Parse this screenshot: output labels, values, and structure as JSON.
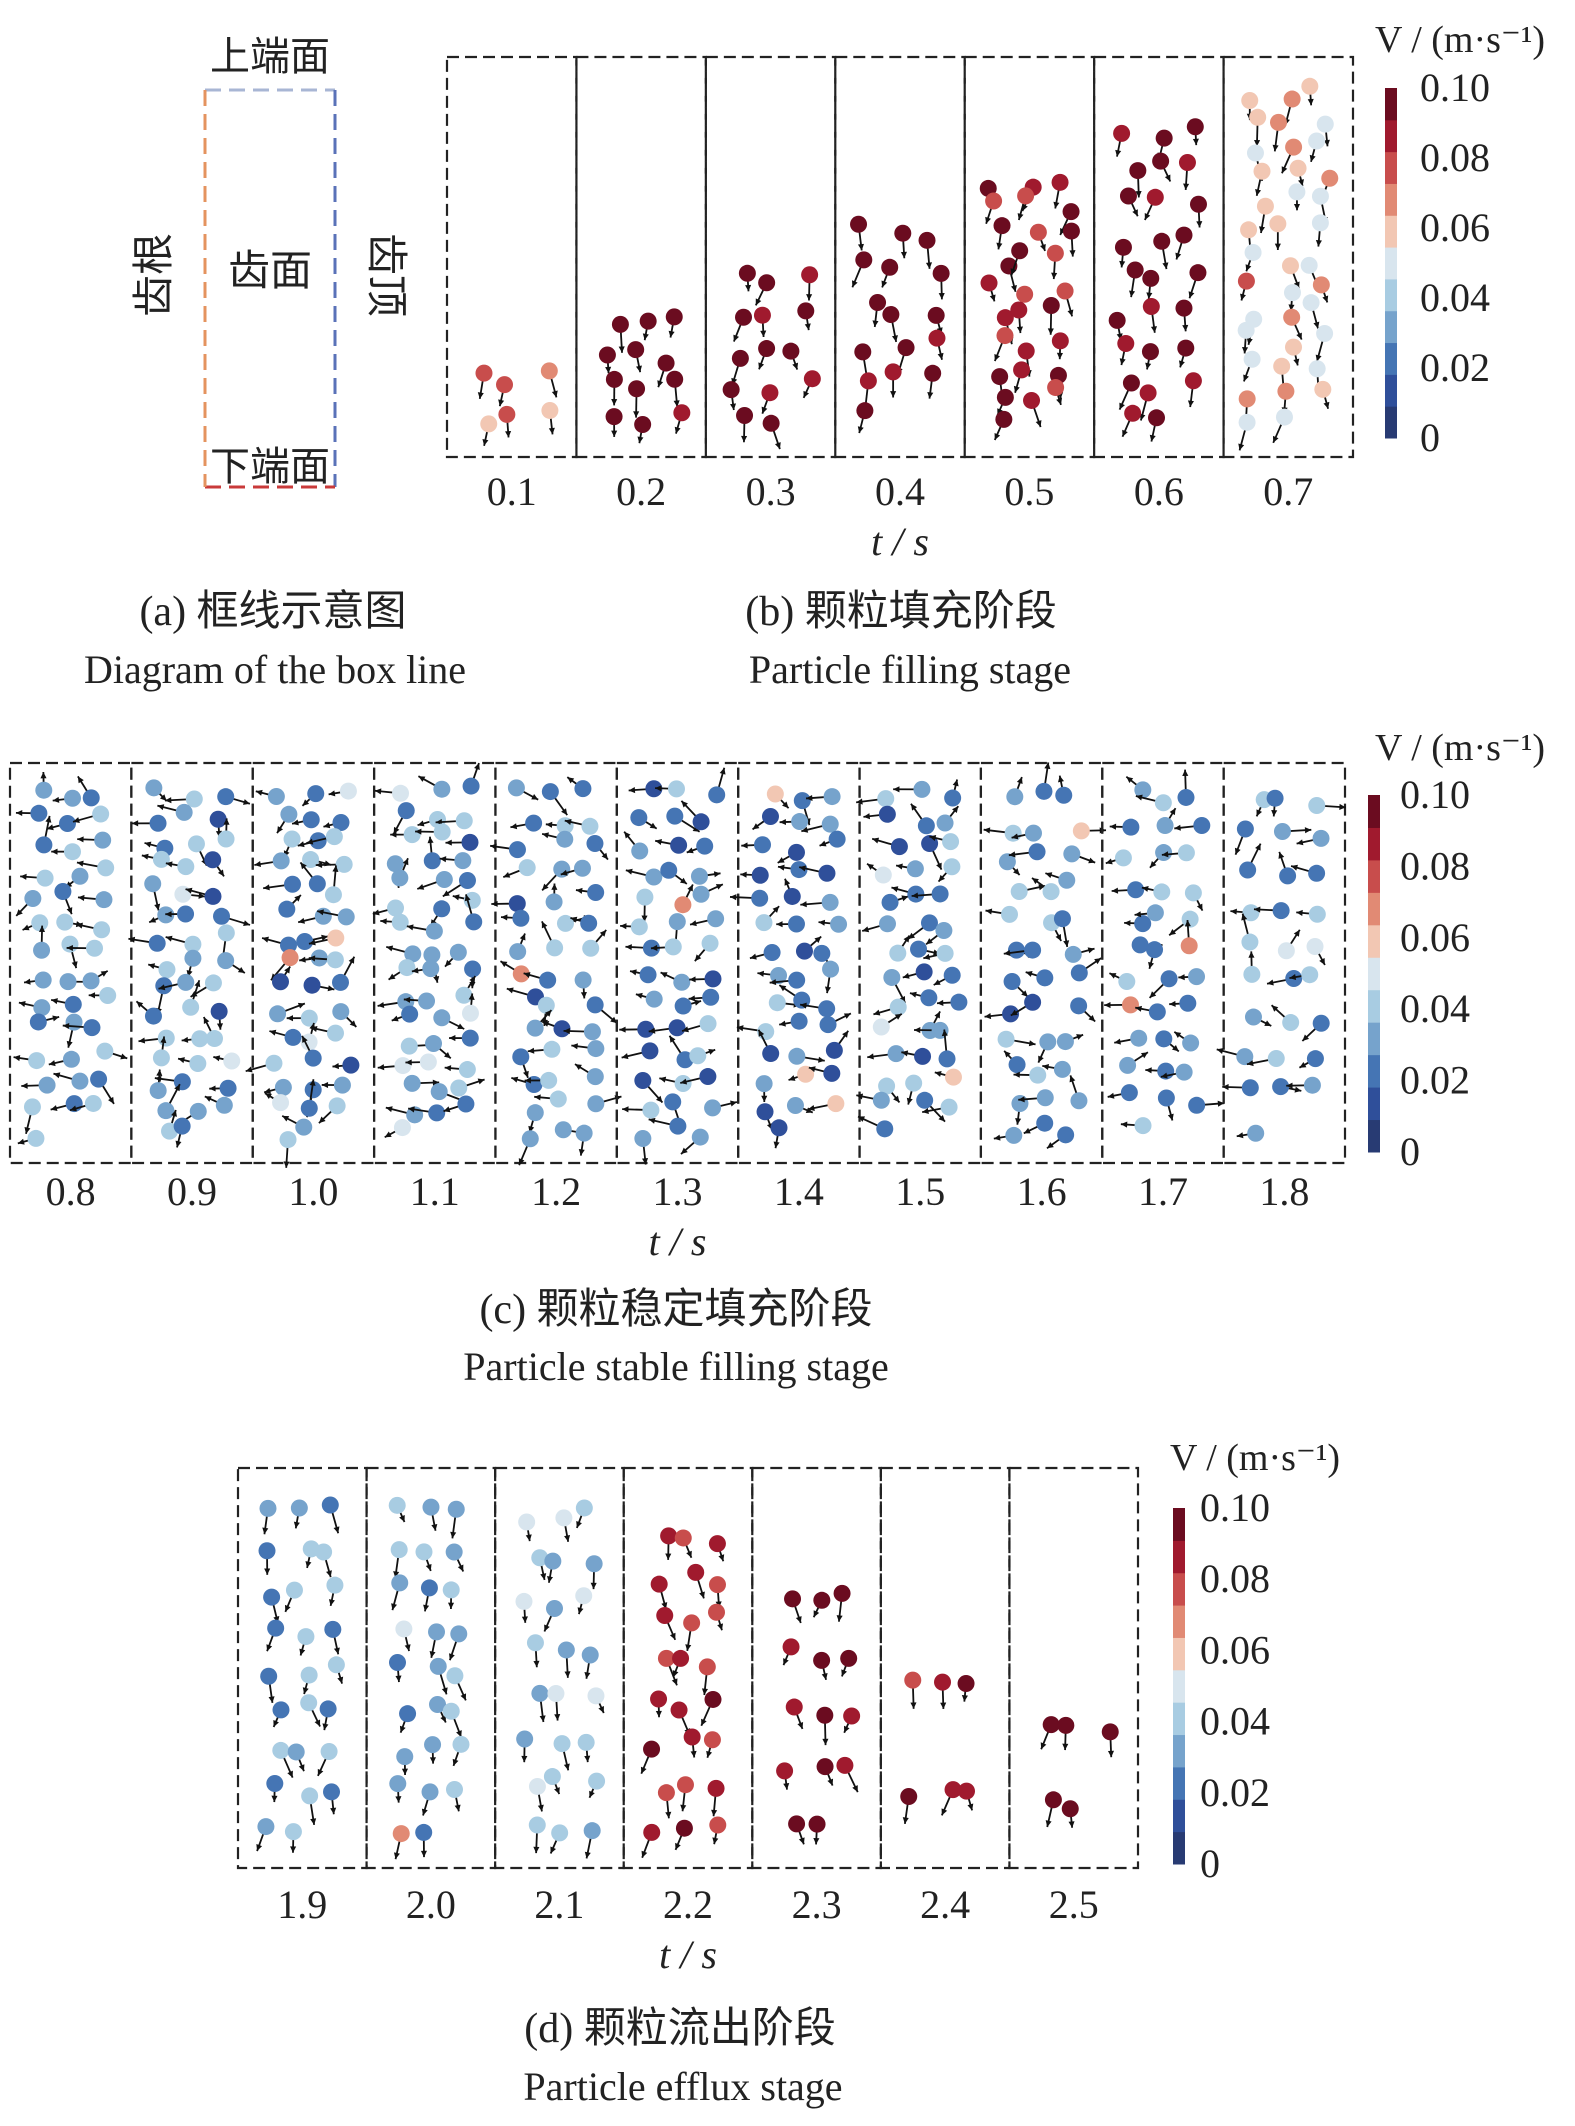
{
  "colors": {
    "colormap": [
      "#283b73",
      "#2f4f9a",
      "#4575b4",
      "#76a3cc",
      "#a8cce2",
      "#d8e5ee",
      "#f2c7b3",
      "#e18a74",
      "#c84d4c",
      "#a01a2e",
      "#6b0c20"
    ],
    "frame": "#222222",
    "arrow": "#111111",
    "box_top": "#a8b6d4",
    "box_right": "#5a72b8",
    "box_bottom": "#c93a3a",
    "box_left": "#e4935f"
  },
  "diagram": {
    "top_label": "上端面",
    "bottom_label": "下端面",
    "left_label": "齿根",
    "right_label": "齿顶",
    "center_label": "齿面"
  },
  "captions": {
    "a": {
      "cn": "(a) 框线示意图",
      "en": "Diagram of the box line"
    },
    "b": {
      "cn": "(b) 颗粒填充阶段",
      "en": "Particle filling stage"
    },
    "c": {
      "cn": "(c) 颗粒稳定填充阶段",
      "en": "Particle stable filling stage"
    },
    "d": {
      "cn": "(d) 颗粒流出阶段",
      "en": "Particle efflux stage"
    }
  },
  "chart_data": [
    {
      "type": "scatter",
      "panel": "b",
      "xlabel": "t / s",
      "categories": [
        "0.1",
        "0.2",
        "0.3",
        "0.4",
        "0.5",
        "0.6",
        "0.7"
      ],
      "colorbar": {
        "label": "V / (m·s⁻¹)",
        "ticks": [
          "0.10",
          "0.08",
          "0.06",
          "0.04",
          "0.02",
          "0"
        ],
        "range": [
          0,
          0.1
        ]
      },
      "particle_counts": [
        6,
        12,
        14,
        16,
        28,
        26,
        38
      ],
      "mean_speed": [
        0.072,
        0.1,
        0.1,
        0.1,
        0.094,
        0.098,
        0.06
      ]
    },
    {
      "type": "scatter",
      "panel": "c",
      "xlabel": "t / s",
      "categories": [
        "0.8",
        "0.9",
        "1.0",
        "1.1",
        "1.2",
        "1.3",
        "1.4",
        "1.5",
        "1.6",
        "1.7",
        "1.8"
      ],
      "colorbar": {
        "label": "V / (m·s⁻¹)",
        "ticks": [
          "0.10",
          "0.08",
          "0.06",
          "0.04",
          "0.02",
          "0"
        ],
        "range": [
          0,
          0.1
        ]
      },
      "particle_counts": [
        40,
        44,
        44,
        46,
        42,
        42,
        40,
        40,
        36,
        34,
        28
      ],
      "mean_speed": [
        0.03,
        0.028,
        0.028,
        0.032,
        0.026,
        0.024,
        0.022,
        0.026,
        0.028,
        0.03,
        0.032
      ]
    },
    {
      "type": "scatter",
      "panel": "d",
      "xlabel": "t / s",
      "categories": [
        "1.9",
        "2.0",
        "2.1",
        "2.2",
        "2.3",
        "2.4",
        "2.5"
      ],
      "colorbar": {
        "label": "V / (m·s⁻¹)",
        "ticks": [
          "0.10",
          "0.08",
          "0.06",
          "0.04",
          "0.02",
          "0"
        ],
        "range": [
          0,
          0.1
        ]
      },
      "particle_counts": [
        26,
        26,
        24,
        24,
        14,
        6,
        5
      ],
      "mean_speed": [
        0.03,
        0.032,
        0.04,
        0.088,
        0.1,
        0.098,
        0.1
      ]
    }
  ]
}
